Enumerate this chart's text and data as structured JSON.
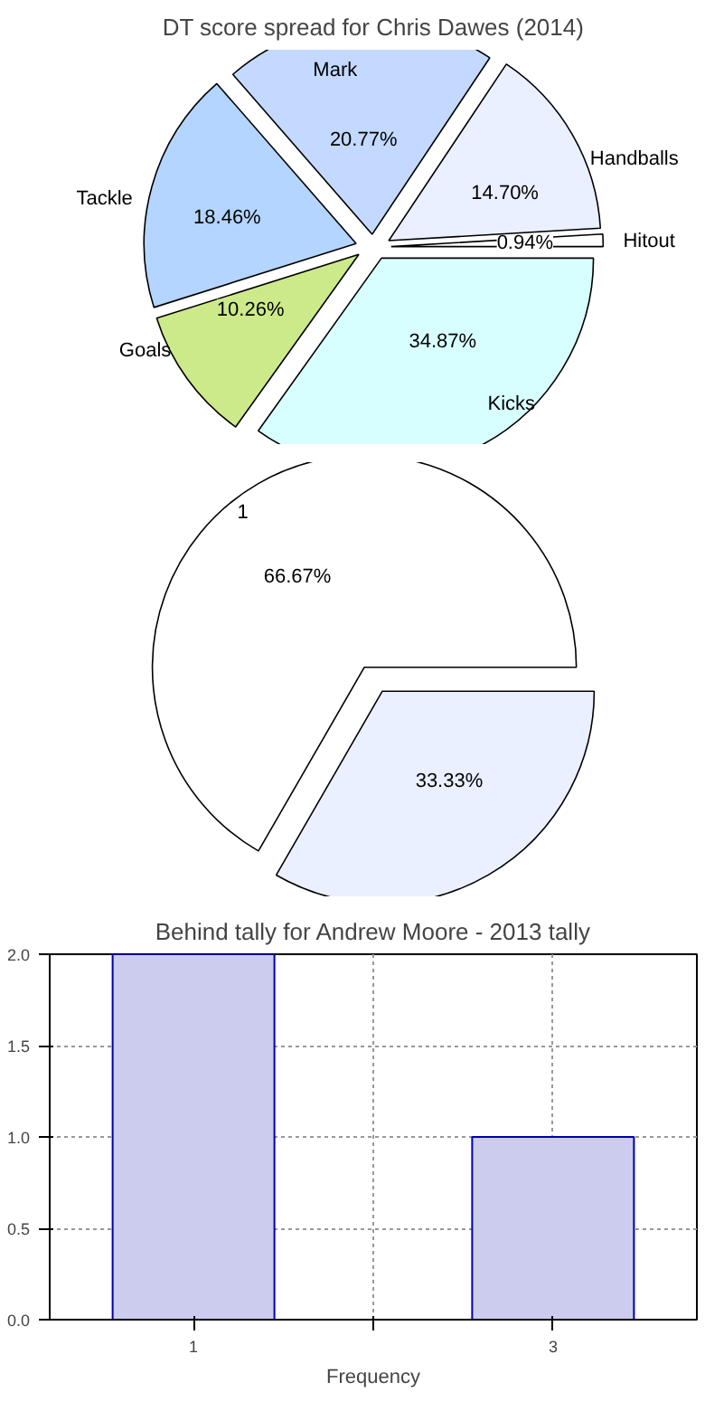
{
  "chart_data": [
    {
      "type": "pie",
      "title": "DT score spread for Chris Dawes (2014)",
      "categories": [
        "Hitout",
        "Handballs",
        "Mark",
        "Tackle",
        "Goals",
        "Kicks"
      ],
      "values": [
        0.94,
        14.7,
        20.77,
        18.46,
        10.26,
        34.87
      ],
      "value_labels": [
        "0.94%",
        "14.70%",
        "20.77%",
        "18.46%",
        "10.26%",
        "34.87%"
      ],
      "colors": [
        "#ffffff",
        "#eaf0ff",
        "#c3d9ff",
        "#b3d5ff",
        "#cdea8a",
        "#d8ffff"
      ]
    },
    {
      "type": "pie",
      "categories": [
        "1",
        null
      ],
      "values": [
        66.67,
        33.33
      ],
      "value_labels": [
        "66.67%",
        "33.33%"
      ],
      "colors": [
        "#ffffff",
        "#eaf0ff"
      ]
    },
    {
      "type": "bar",
      "title": "Behind tally for Andrew Moore - 2013 tally",
      "xlabel": "Frequency",
      "categories": [
        "1",
        null,
        "3"
      ],
      "values": [
        2,
        null,
        1
      ],
      "color": "#ccccee",
      "ylim": [
        0,
        2
      ],
      "yticks": [
        {
          "value": 0,
          "label": "0.0"
        },
        {
          "value": 0.5,
          "label": "0.5"
        },
        {
          "value": 1,
          "label": "1.0"
        },
        {
          "value": 1.5,
          "label": "1.5"
        },
        {
          "value": 2,
          "label": "2.0"
        }
      ],
      "grid": true
    }
  ]
}
